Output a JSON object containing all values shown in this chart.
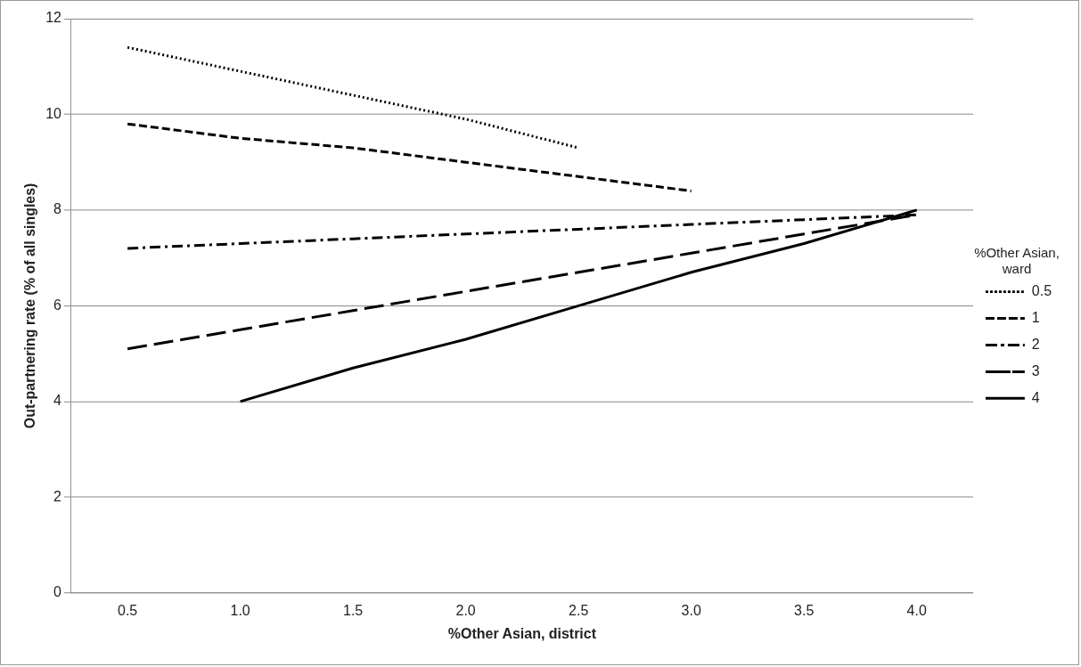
{
  "chart_data": {
    "type": "line",
    "xlabel": "%Other Asian, district",
    "ylabel": "Out-partnering rate (% of all singles)",
    "legend_title": "%Other Asian, ward",
    "categories": [
      "0.5",
      "1.0",
      "1.5",
      "2.0",
      "2.5",
      "3.0",
      "3.5",
      "4.0"
    ],
    "series": [
      {
        "name": "0.5",
        "color": "#000000",
        "line_style": "dotted",
        "values": [
          11.4,
          10.9,
          10.4,
          9.9,
          9.3,
          null,
          null,
          null
        ]
      },
      {
        "name": "1",
        "color": "#000000",
        "line_style": "dashed",
        "values": [
          9.8,
          9.5,
          9.3,
          9.0,
          8.7,
          8.4,
          null,
          null
        ]
      },
      {
        "name": "2",
        "color": "#000000",
        "line_style": "dashdot",
        "values": [
          7.2,
          7.3,
          7.4,
          7.5,
          7.6,
          7.7,
          7.8,
          7.9
        ]
      },
      {
        "name": "3",
        "color": "#000000",
        "line_style": "longdash",
        "values": [
          5.1,
          5.5,
          5.9,
          6.3,
          6.7,
          7.1,
          7.5,
          7.9
        ]
      },
      {
        "name": "4",
        "color": "#000000",
        "line_style": "solid",
        "values": [
          null,
          4.0,
          4.7,
          5.3,
          6.0,
          6.7,
          7.3,
          8.0
        ]
      }
    ],
    "ylim": [
      0,
      12
    ],
    "yticks": [
      0,
      2,
      4,
      6,
      8,
      10,
      12
    ],
    "grid": "y",
    "legend": "right",
    "marker": "none"
  }
}
